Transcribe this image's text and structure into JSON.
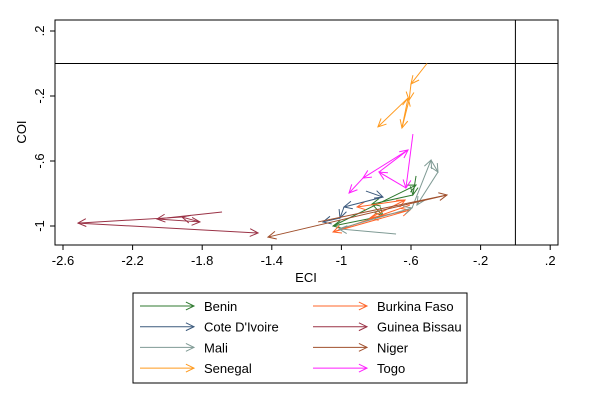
{
  "chart_data": {
    "type": "line",
    "subtype": "arrow-path",
    "xlabel": "ECI",
    "ylabel": "COI",
    "xlim": [
      -2.65,
      0.25
    ],
    "ylim": [
      -1.12,
      0.27
    ],
    "xticks": [
      -2.6,
      -2.2,
      -1.8,
      -1.4,
      -1,
      -0.6,
      -0.2,
      0.2
    ],
    "xtick_labels": [
      "-2.6",
      "-2.2",
      "-1.8",
      "-1.4",
      "-1",
      "-.6",
      "-.2",
      ".2"
    ],
    "yticks": [
      0.2,
      -0.2,
      -0.6,
      -1
    ],
    "ytick_labels": [
      ".2",
      "-.2",
      "-.6",
      "-1"
    ],
    "reference_lines": {
      "x": 0,
      "y": 0
    },
    "grid": false,
    "legend_position": "bottom",
    "series": [
      {
        "name": "Benin",
        "color": "#2f7a2f",
        "points": [
          [
            -0.571,
            -0.692
          ],
          [
            -0.589,
            -0.809
          ],
          [
            -0.824,
            -0.865
          ],
          [
            -0.761,
            -0.938
          ],
          [
            -1.048,
            -1.0
          ],
          [
            -0.571,
            -0.748
          ]
        ]
      },
      {
        "name": "Burkina Faso",
        "color": "#ff6428",
        "points": [
          [
            -0.606,
            -0.871
          ],
          [
            -1.048,
            -1.037
          ],
          [
            -0.606,
            -0.902
          ],
          [
            -0.836,
            -0.951
          ],
          [
            -0.634,
            -0.84
          ],
          [
            -0.91,
            -0.883
          ]
        ]
      },
      {
        "name": "Cote D'Ivoire",
        "color": "#3c5a7d",
        "points": [
          [
            -0.859,
            -0.785
          ],
          [
            -0.761,
            -0.822
          ],
          [
            -0.985,
            -0.883
          ],
          [
            -1.008,
            -0.951
          ],
          [
            -1.106,
            -0.975
          ]
        ]
      },
      {
        "name": "Guinea Bissau",
        "color": "#9a3246",
        "points": [
          [
            -1.686,
            -0.914
          ],
          [
            -2.06,
            -0.957
          ],
          [
            -1.813,
            -0.975
          ],
          [
            -1.916,
            -0.945
          ],
          [
            -2.514,
            -0.982
          ],
          [
            -1.479,
            -1.043
          ]
        ]
      },
      {
        "name": "Mali",
        "color": "#7f9a94",
        "points": [
          [
            -0.686,
            -1.049
          ],
          [
            -1.014,
            -1.018
          ],
          [
            -0.594,
            -0.889
          ],
          [
            -0.485,
            -0.594
          ],
          [
            -0.445,
            -0.668
          ],
          [
            -0.566,
            -0.871
          ]
        ]
      },
      {
        "name": "Niger",
        "color": "#a0502d",
        "points": [
          [
            -1.134,
            -0.975
          ],
          [
            -0.393,
            -0.809
          ],
          [
            -1.422,
            -1.068
          ]
        ]
      },
      {
        "name": "Senegal",
        "color": "#ff9a1e",
        "points": [
          [
            -0.508,
            0.0
          ],
          [
            -0.6,
            -0.126
          ],
          [
            -0.611,
            -0.225
          ],
          [
            -0.652,
            -0.397
          ],
          [
            -0.617,
            -0.212
          ],
          [
            -0.79,
            -0.39
          ]
        ]
      },
      {
        "name": "Togo",
        "color": "#ff1eff",
        "points": [
          [
            -0.589,
            -0.434
          ],
          [
            -0.629,
            -0.766
          ],
          [
            -0.784,
            -0.668
          ],
          [
            -0.617,
            -0.532
          ],
          [
            -0.876,
            -0.705
          ],
          [
            -0.956,
            -0.797
          ]
        ]
      }
    ]
  }
}
